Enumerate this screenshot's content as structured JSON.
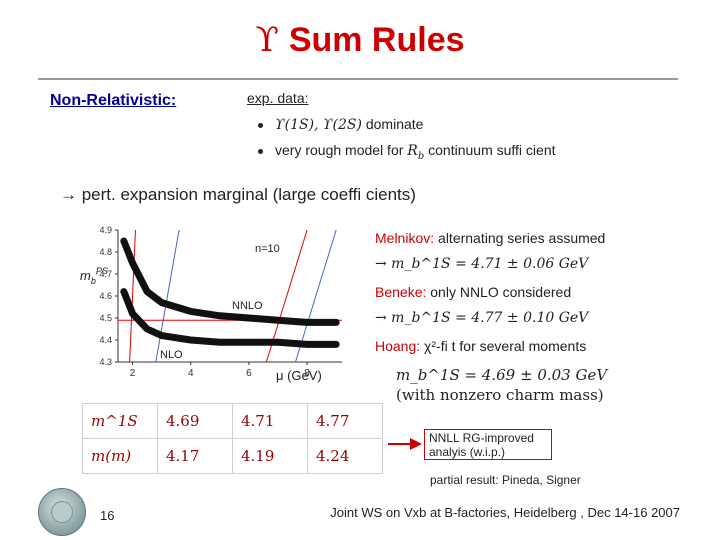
{
  "header": {
    "title_symbol": "ϒ",
    "title_text": "Sum Rules"
  },
  "left_label": "Non-Relativistic:",
  "exp_data": {
    "label": "exp. data:",
    "bullets": [
      {
        "math": "ϒ(1S), ϒ(2S)",
        "text": "dominate"
      },
      {
        "text": "very rough model for",
        "math": "R",
        "math_sub": "b",
        "text2": "continuum suffi cient"
      }
    ]
  },
  "pert_line": "→ pert. expansion marginal (large coeffi cients)",
  "chart": {
    "ylabel_main": "m",
    "ylabel_sub": "b",
    "ylabel_sup": "PS",
    "xlabel": "μ (GeV)",
    "curve_label_n": "n=10",
    "curve_label_nnlo": "NNLO",
    "curve_label_nlo": "NLO"
  },
  "chart_data": {
    "type": "line",
    "x_ticks": [
      "2",
      "4",
      "6",
      "8"
    ],
    "y_ticks": [
      "4.9",
      "4.8",
      "4.7",
      "4.6",
      "4.5",
      "4.4",
      "4.3"
    ],
    "xlim": [
      1.5,
      9.2
    ],
    "ylim": [
      4.3,
      4.9
    ],
    "series": [
      {
        "name": "NNLO",
        "x": [
          1.7,
          2.0,
          2.5,
          3.0,
          4.0,
          5.0,
          6.0,
          7.0,
          8.0,
          9.0
        ],
        "y": [
          4.85,
          4.75,
          4.62,
          4.57,
          4.53,
          4.51,
          4.5,
          4.49,
          4.48,
          4.48
        ]
      },
      {
        "name": "NLO",
        "x": [
          1.7,
          2.0,
          2.5,
          3.0,
          4.0,
          5.0,
          6.0,
          7.0,
          8.0,
          9.0
        ],
        "y": [
          4.62,
          4.52,
          4.45,
          4.42,
          4.4,
          4.39,
          4.39,
          4.39,
          4.38,
          4.38
        ]
      }
    ],
    "red_lines": [
      {
        "x": [
          1.9,
          2.1
        ],
        "y": [
          4.3,
          4.9
        ]
      },
      {
        "x": [
          6.6,
          8.0
        ],
        "y": [
          4.3,
          4.9
        ]
      },
      {
        "x": [
          1.5,
          9.2
        ],
        "y": [
          4.49,
          4.49
        ]
      }
    ],
    "blue_lines": [
      {
        "x": [
          2.8,
          3.6
        ],
        "y": [
          4.3,
          4.9
        ]
      },
      {
        "x": [
          7.6,
          9.0
        ],
        "y": [
          4.3,
          4.9
        ]
      }
    ]
  },
  "results": {
    "melnikov_name": "Melnikov:",
    "melnikov_text": "alternating series assumed",
    "melnikov_value": "→ m_b^1S = 4.71 ± 0.06 GeV",
    "beneke_name": "Beneke:",
    "beneke_text": "only NNLO considered",
    "beneke_value": "→ m_b^1S = 4.77 ± 0.10 GeV",
    "hoang_name": "Hoang:",
    "hoang_text": "χ²-fi t for several moments",
    "hoang_value": "m_b^1S = 4.69 ± 0.03 GeV",
    "hoang_note": "(with nonzero charm mass)"
  },
  "table": {
    "rows": [
      {
        "label": "m^1S",
        "values": [
          "4.69",
          "4.71",
          "4.77"
        ]
      },
      {
        "label": "m(m)",
        "values": [
          "4.17",
          "4.19",
          "4.24"
        ]
      }
    ]
  },
  "nnll_box": "NNLL RG-improved analyis (w.i.p.)",
  "partial_result": "partial result: Pineda, Signer",
  "footer": {
    "page_number": "16",
    "conference": "Joint WS on Vxb at B-factories, Heidelberg , Dec 14-16 2007"
  }
}
